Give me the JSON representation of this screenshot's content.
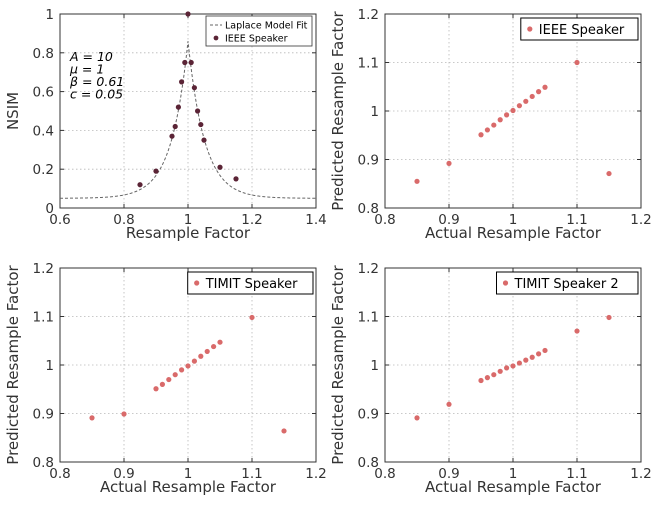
{
  "colors": {
    "point_fill": "#d96a6a",
    "point_fill_dark": "#5b2436",
    "fit_line": "#666666"
  },
  "chart_data": [
    {
      "type": "scatter",
      "xlabel": "Resample Factor",
      "ylabel": "NSIM",
      "xlim": [
        0.6,
        1.4
      ],
      "ylim": [
        0,
        1
      ],
      "xticks": [
        "0.6",
        "0.8",
        "1",
        "1.2",
        "1.4"
      ],
      "yticks": [
        "0",
        "0.2",
        "0.4",
        "0.6",
        "0.8",
        "1"
      ],
      "grid": true,
      "legend_placement": "top-right",
      "legend": [
        "Laplace Model Fit",
        "IEEE Speaker"
      ],
      "params": [
        "A = 10",
        "μ = 1",
        "β = 0.61",
        "c = 0.05"
      ],
      "fit": {
        "A": 10,
        "mu": 1,
        "beta": 0.61,
        "c": 0.05
      },
      "series": [
        {
          "name": "IEEE Speaker",
          "x": [
            0.85,
            0.9,
            0.95,
            0.96,
            0.97,
            0.98,
            0.99,
            1.0,
            1.01,
            1.02,
            1.03,
            1.04,
            1.05,
            1.1,
            1.15
          ],
          "y": [
            0.12,
            0.19,
            0.37,
            0.42,
            0.52,
            0.65,
            0.75,
            1.0,
            0.75,
            0.62,
            0.5,
            0.43,
            0.35,
            0.21,
            0.15
          ]
        }
      ]
    },
    {
      "type": "scatter",
      "xlabel": "Actual Resample Factor",
      "ylabel": "Predicted Resample Factor",
      "xlim": [
        0.8,
        1.2
      ],
      "ylim": [
        0.8,
        1.2
      ],
      "xticks": [
        "0.8",
        "0.9",
        "1",
        "1.1",
        "1.2"
      ],
      "yticks": [
        "0.8",
        "0.9",
        "1",
        "1.1",
        "1.2"
      ],
      "grid": true,
      "legend_placement": "top-right",
      "legend": [
        "IEEE Speaker"
      ],
      "series": [
        {
          "name": "IEEE Speaker",
          "x": [
            0.85,
            0.9,
            0.95,
            0.96,
            0.97,
            0.98,
            0.99,
            1.0,
            1.01,
            1.02,
            1.03,
            1.04,
            1.05,
            1.1,
            1.15
          ],
          "y": [
            0.855,
            0.892,
            0.951,
            0.961,
            0.971,
            0.982,
            0.992,
            1.001,
            1.011,
            1.02,
            1.03,
            1.04,
            1.049,
            1.1,
            0.871
          ]
        }
      ]
    },
    {
      "type": "scatter",
      "xlabel": "Actual Resample Factor",
      "ylabel": "Predicted Resample Factor",
      "xlim": [
        0.8,
        1.2
      ],
      "ylim": [
        0.8,
        1.2
      ],
      "xticks": [
        "0.8",
        "0.9",
        "1",
        "1.1",
        "1.2"
      ],
      "yticks": [
        "0.8",
        "0.9",
        "1",
        "1.1",
        "1.2"
      ],
      "grid": true,
      "legend_placement": "top-right",
      "legend": [
        "TIMIT Speaker"
      ],
      "series": [
        {
          "name": "TIMIT Speaker",
          "x": [
            0.85,
            0.9,
            0.95,
            0.96,
            0.97,
            0.98,
            0.99,
            1.0,
            1.01,
            1.02,
            1.03,
            1.04,
            1.05,
            1.1,
            1.15
          ],
          "y": [
            0.891,
            0.899,
            0.951,
            0.96,
            0.97,
            0.98,
            0.99,
            0.998,
            1.008,
            1.018,
            1.028,
            1.038,
            1.047,
            1.098,
            0.864
          ]
        }
      ]
    },
    {
      "type": "scatter",
      "xlabel": "Actual Resample Factor",
      "ylabel": "Predicted Resample Factor",
      "xlim": [
        0.8,
        1.2
      ],
      "ylim": [
        0.8,
        1.2
      ],
      "xticks": [
        "0.8",
        "0.9",
        "1",
        "1.1",
        "1.2"
      ],
      "yticks": [
        "0.8",
        "0.9",
        "1",
        "1.1",
        "1.2"
      ],
      "grid": true,
      "legend_placement": "top-right",
      "legend": [
        "TIMIT Speaker 2"
      ],
      "series": [
        {
          "name": "TIMIT Speaker 2",
          "x": [
            0.85,
            0.9,
            0.95,
            0.96,
            0.97,
            0.98,
            0.99,
            1.0,
            1.01,
            1.02,
            1.03,
            1.04,
            1.05,
            1.1,
            1.15
          ],
          "y": [
            0.891,
            0.919,
            0.968,
            0.974,
            0.98,
            0.987,
            0.994,
            0.998,
            1.004,
            1.01,
            1.016,
            1.023,
            1.03,
            1.07,
            1.098
          ]
        }
      ]
    }
  ]
}
